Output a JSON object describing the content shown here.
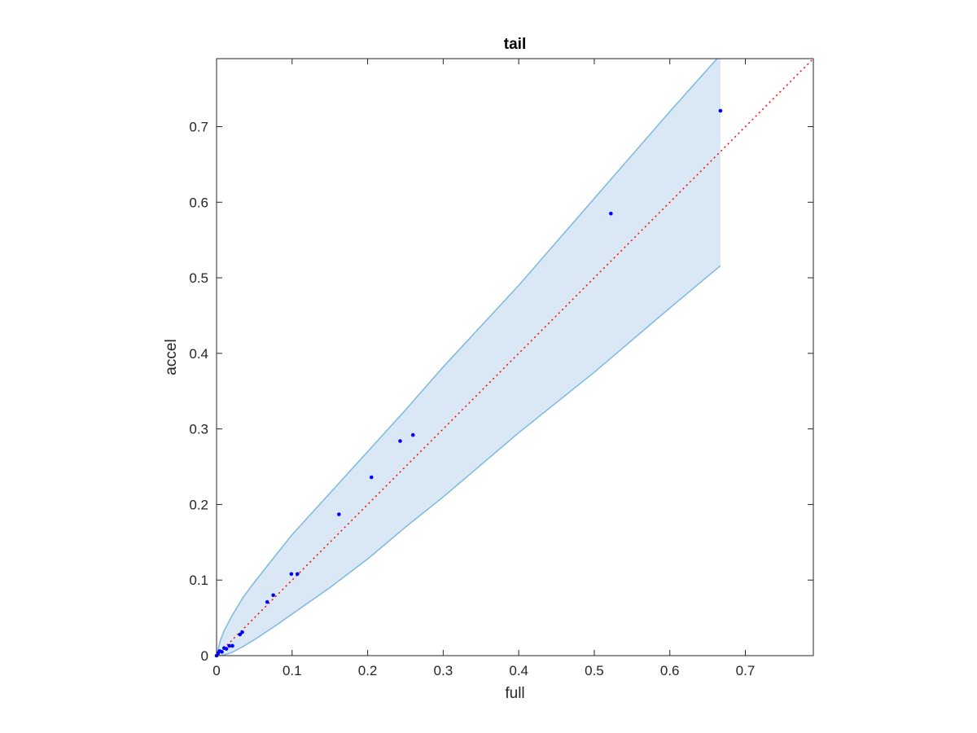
{
  "chart_data": {
    "type": "scatter",
    "title": "tail",
    "xlabel": "full",
    "ylabel": "accel",
    "xlim": [
      0,
      0.79
    ],
    "ylim": [
      0,
      0.79
    ],
    "xticks": [
      0,
      0.1,
      0.2,
      0.3,
      0.4,
      0.5,
      0.6,
      0.7
    ],
    "yticks": [
      0,
      0.1,
      0.2,
      0.3,
      0.4,
      0.5,
      0.6,
      0.7
    ],
    "xtick_labels": [
      "0",
      "0.1",
      "0.2",
      "0.3",
      "0.4",
      "0.5",
      "0.6",
      "0.7"
    ],
    "ytick_labels": [
      "0",
      "0.1",
      "0.2",
      "0.3",
      "0.4",
      "0.5",
      "0.6",
      "0.7"
    ],
    "grid": false,
    "reference_line": {
      "style": "dotted",
      "color": "#ff0000",
      "x": [
        0,
        0.79
      ],
      "y": [
        0,
        0.79
      ]
    },
    "band": {
      "color_fill": "#d9e8f4",
      "color_edge": "#7db9de",
      "x": [
        0,
        0.005,
        0.01,
        0.02,
        0.035,
        0.05,
        0.08,
        0.1,
        0.15,
        0.2,
        0.25,
        0.3,
        0.4,
        0.5,
        0.6,
        0.667
      ],
      "upper": [
        0,
        0.02,
        0.033,
        0.052,
        0.077,
        0.097,
        0.135,
        0.16,
        0.215,
        0.27,
        0.325,
        0.382,
        0.49,
        0.605,
        0.72,
        0.795
      ],
      "lower": [
        0,
        0.0,
        0.001,
        0.004,
        0.012,
        0.021,
        0.041,
        0.055,
        0.09,
        0.128,
        0.17,
        0.21,
        0.295,
        0.375,
        0.46,
        0.516
      ]
    },
    "series": [
      {
        "color": "#0000ff",
        "x": [
          0.0,
          0.002,
          0.004,
          0.007,
          0.01,
          0.013,
          0.017,
          0.021,
          0.031,
          0.034,
          0.067,
          0.075,
          0.099,
          0.107,
          0.162,
          0.205,
          0.243,
          0.26,
          0.522,
          0.667
        ],
        "y": [
          0.0,
          0.003,
          0.006,
          0.005,
          0.01,
          0.009,
          0.013,
          0.013,
          0.028,
          0.031,
          0.071,
          0.08,
          0.108,
          0.108,
          0.187,
          0.236,
          0.284,
          0.292,
          0.585,
          0.721
        ]
      }
    ]
  }
}
